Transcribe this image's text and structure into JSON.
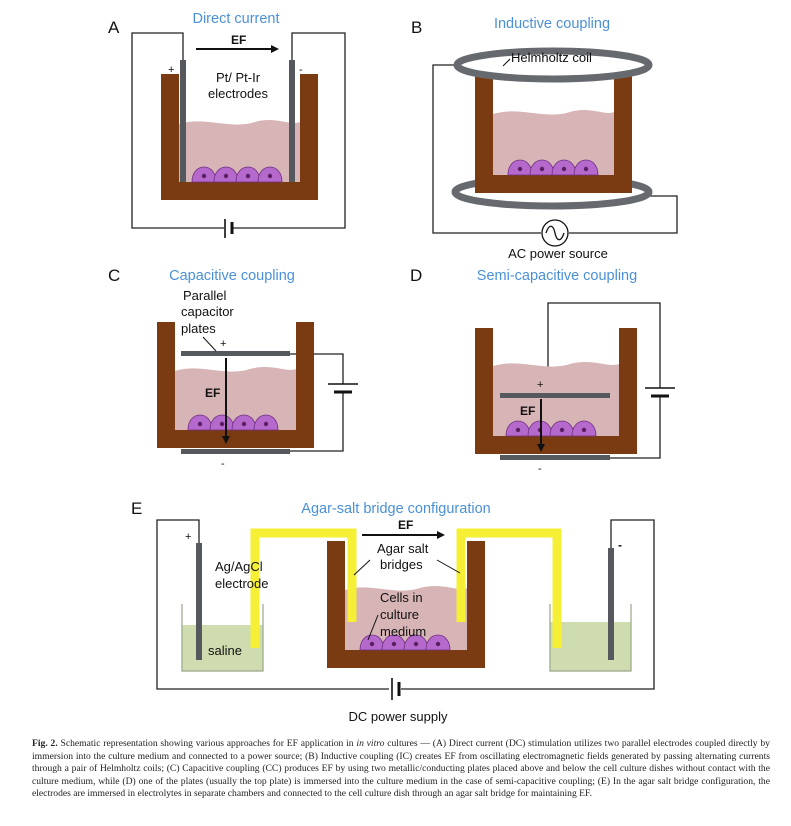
{
  "colors": {
    "dish_wall": "#7a3b12",
    "medium": "#d7b4b6",
    "cell_fill": "#b569cc",
    "cell_nucleus": "#5a1f63",
    "electrode": "#55585c",
    "coil": "#666a6e",
    "salt_bridge": "#f5ef35",
    "saline": "#cfdcb0",
    "title_blue": "#4a90d9"
  },
  "panel_a": {
    "letter": "A",
    "title": "Direct current",
    "ef": "EF",
    "plus": "+",
    "minus": "-",
    "electrodes_line1": "Pt/ Pt-Ir",
    "electrodes_line2": "electrodes"
  },
  "panel_b": {
    "letter": "B",
    "title": "Inductive coupling",
    "coil_label": "Helmholtz coil",
    "power_label": "AC power source"
  },
  "panel_c": {
    "letter": "C",
    "title": "Capacitive coupling",
    "plates_line1": "Parallel",
    "plates_line2": "capacitor",
    "plates_line3": "plates",
    "plus": "+",
    "minus": "-",
    "ef": "EF"
  },
  "panel_d": {
    "letter": "D",
    "title": "Semi-capacitive coupling",
    "plus": "+",
    "minus": "-",
    "ef": "EF"
  },
  "panel_e": {
    "letter": "E",
    "title": "Agar-salt  bridge configuration",
    "ef": "EF",
    "plus": "+",
    "minus": "-",
    "electrode_line1": "Ag/AgCl",
    "electrode_line2": "electrode",
    "bridge_line1": "Agar salt",
    "bridge_line2": "bridges",
    "cells_line1": "Cells in",
    "cells_line2": "culture",
    "cells_line3": "medium",
    "saline": "saline",
    "power_label": "DC power supply"
  },
  "caption": {
    "fig_label": "Fig. 2.",
    "text_1": " Schematic representation showing various approaches for EF application in ",
    "text_italic": "in vitro",
    "text_2": " cultures — (A) Direct current (DC) stimulation utilizes two parallel electrodes coupled directly by immersion into the culture medium and connected to a power source; (B) Inductive coupling (IC) creates EF from oscillating electromagnetic fields generated by passing alternating currents through a pair of Helmholtz coils; (C) Capacitive coupling (CC) produces EF by using two metallic/conducting plates placed above and below the cell culture dishes without contact with the culture medium, while (D) one of the plates (usually the top plate) is immersed into the culture medium in the case of semi-capacitive coupling; (E) In the agar salt bridge configuration, the electrodes are immersed in electrolytes in separate chambers and connected to the cell culture dish through an agar salt bridge for maintaining EF."
  }
}
